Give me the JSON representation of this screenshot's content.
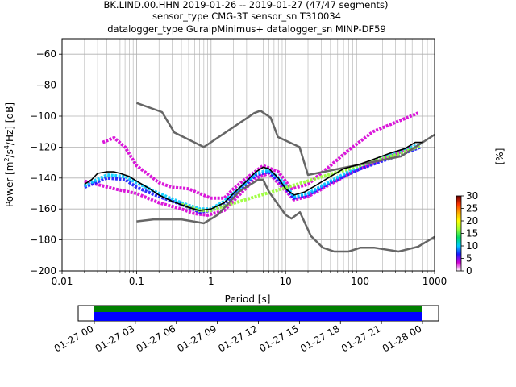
{
  "chart_data": [
    {
      "type": "heatmap",
      "title_lines": [
        "BK.LIND.00.HHN   2019-01-26 -- 2019-01-27  (47/47 segments)",
        "sensor_type CMG-3T sensor_sn T310034",
        "datalogger_type GuralpMinimus+ datalogger_sn MINP-DF59"
      ],
      "xlabel": "Period [s]",
      "ylabel_parts": [
        "Power [m",
        "2",
        "/s",
        "4",
        "/Hz] [dB]"
      ],
      "xscale": "log",
      "xlim": [
        0.01,
        1000
      ],
      "ylim": [
        -200,
        -50
      ],
      "grid": true,
      "x_ticks": [
        {
          "value": 0.01,
          "label": "0.01"
        },
        {
          "value": 0.1,
          "label": "0.1"
        },
        {
          "value": 1,
          "label": "1"
        },
        {
          "value": 10,
          "label": "10"
        },
        {
          "value": 100,
          "label": "100"
        },
        {
          "value": 1000,
          "label": "1000"
        }
      ],
      "y_ticks": [
        {
          "value": -60,
          "label": "−60"
        },
        {
          "value": -80,
          "label": "−80"
        },
        {
          "value": -100,
          "label": "−100"
        },
        {
          "value": -120,
          "label": "−120"
        },
        {
          "value": -140,
          "label": "−140"
        },
        {
          "value": -160,
          "label": "−160"
        },
        {
          "value": -180,
          "label": "−180"
        },
        {
          "value": -200,
          "label": "−200"
        }
      ],
      "colorbar": {
        "label": "[%]",
        "range": [
          0,
          30
        ],
        "ticks": [
          {
            "value": 0,
            "label": "0"
          },
          {
            "value": 5,
            "label": "5"
          },
          {
            "value": 10,
            "label": "10"
          },
          {
            "value": 15,
            "label": "15"
          },
          {
            "value": 20,
            "label": "20"
          },
          {
            "value": 25,
            "label": "25"
          },
          {
            "value": 30,
            "label": "30"
          }
        ],
        "colors": [
          "#ffffff",
          "#d600d6",
          "#1a1aff",
          "#00ccff",
          "#00dd66",
          "#99ff33",
          "#ffff00",
          "#ffaa00",
          "#ff3300",
          "#660000"
        ]
      },
      "noise_models": [
        {
          "name": "NHNM",
          "color": "#666666",
          "points": [
            [
              0.1,
              -91.5
            ],
            [
              0.22,
              -97.4
            ],
            [
              0.32,
              -110.5
            ],
            [
              0.8,
              -120
            ],
            [
              3.8,
              -98
            ],
            [
              4.6,
              -96.5
            ],
            [
              6.3,
              -101
            ],
            [
              7.9,
              -113.5
            ],
            [
              15.4,
              -120
            ],
            [
              20,
              -138
            ],
            [
              354.8,
              -126
            ],
            [
              10000,
              -80
            ]
          ]
        },
        {
          "name": "NLNM",
          "color": "#666666",
          "points": [
            [
              0.1,
              -168
            ],
            [
              0.17,
              -166.7
            ],
            [
              0.4,
              -166.7
            ],
            [
              0.8,
              -169.2
            ],
            [
              1.24,
              -163.7
            ],
            [
              2.4,
              -148.6
            ],
            [
              4.3,
              -141.1
            ],
            [
              5.0,
              -141.1
            ],
            [
              6.0,
              -149
            ],
            [
              10.0,
              -163.8
            ],
            [
              12.0,
              -166.2
            ],
            [
              15.6,
              -162.1
            ],
            [
              21.9,
              -177.5
            ],
            [
              31.6,
              -185
            ],
            [
              45,
              -187.5
            ],
            [
              70,
              -187.5
            ],
            [
              101,
              -185
            ],
            [
              154,
              -185
            ],
            [
              328,
              -187.5
            ],
            [
              600,
              -184.4
            ],
            [
              1000,
              -178
            ]
          ]
        }
      ],
      "mode_curve": {
        "name": "mode",
        "color": "#000000",
        "points": [
          [
            0.02,
            -144
          ],
          [
            0.025,
            -141
          ],
          [
            0.03,
            -137
          ],
          [
            0.04,
            -136
          ],
          [
            0.05,
            -136
          ],
          [
            0.06,
            -137
          ],
          [
            0.08,
            -139
          ],
          [
            0.1,
            -142
          ],
          [
            0.15,
            -147
          ],
          [
            0.2,
            -151
          ],
          [
            0.3,
            -155
          ],
          [
            0.5,
            -159
          ],
          [
            0.7,
            -161
          ],
          [
            1.0,
            -160
          ],
          [
            1.5,
            -156
          ],
          [
            2.0,
            -150
          ],
          [
            3.0,
            -142
          ],
          [
            4.0,
            -136
          ],
          [
            5.0,
            -133
          ],
          [
            6.0,
            -134
          ],
          [
            8.0,
            -140
          ],
          [
            10.0,
            -147
          ],
          [
            13.0,
            -151
          ],
          [
            18.0,
            -149
          ],
          [
            25.0,
            -145
          ],
          [
            40.0,
            -139
          ],
          [
            60.0,
            -134
          ],
          [
            100.0,
            -131
          ],
          [
            150.0,
            -128
          ],
          [
            250.0,
            -124
          ],
          [
            400.0,
            -121
          ],
          [
            550.0,
            -117
          ],
          [
            700.0,
            -117
          ]
        ]
      },
      "density_layers": [
        {
          "percent": 2,
          "color": "#d600d6",
          "points": [
            [
              0.035,
              -117
            ],
            [
              0.05,
              -114
            ],
            [
              0.07,
              -120
            ],
            [
              0.1,
              -132
            ],
            [
              0.2,
              -143
            ],
            [
              0.3,
              -146
            ],
            [
              0.5,
              -147
            ],
            [
              0.7,
              -150
            ],
            [
              1.0,
              -153
            ],
            [
              1.5,
              -153
            ],
            [
              2.0,
              -147
            ],
            [
              3.0,
              -140
            ],
            [
              5.0,
              -132
            ],
            [
              8.0,
              -136
            ],
            [
              12.0,
              -147
            ],
            [
              20.0,
              -144
            ],
            [
              40.0,
              -132
            ],
            [
              70.0,
              -122
            ],
            [
              150.0,
              -110
            ],
            [
              300.0,
              -104
            ],
            [
              600.0,
              -98
            ]
          ]
        },
        {
          "percent": 3,
          "color": "#d600d6",
          "points": [
            [
              0.02,
              -142
            ],
            [
              0.05,
              -147
            ],
            [
              0.1,
              -150
            ],
            [
              0.2,
              -156
            ],
            [
              0.4,
              -160
            ],
            [
              0.6,
              -163
            ],
            [
              0.9,
              -164
            ],
            [
              1.5,
              -161
            ],
            [
              2.5,
              -150
            ],
            [
              4.0,
              -140
            ],
            [
              6.0,
              -137
            ],
            [
              9.0,
              -146
            ],
            [
              13.0,
              -154
            ],
            [
              20.0,
              -152
            ],
            [
              40.0,
              -144
            ],
            [
              80.0,
              -136
            ],
            [
              200.0,
              -128
            ],
            [
              500.0,
              -120
            ]
          ]
        },
        {
          "percent": 6,
          "color": "#1a1aff",
          "points": [
            [
              0.02,
              -146
            ],
            [
              0.04,
              -140
            ],
            [
              0.07,
              -141
            ],
            [
              0.1,
              -146
            ],
            [
              0.2,
              -152
            ],
            [
              0.4,
              -157
            ],
            [
              0.7,
              -162
            ],
            [
              1.0,
              -161
            ],
            [
              1.5,
              -157
            ],
            [
              2.5,
              -147
            ],
            [
              4.0,
              -138
            ],
            [
              6.0,
              -136
            ],
            [
              9.0,
              -144
            ],
            [
              13.0,
              -153
            ],
            [
              20.0,
              -151
            ],
            [
              40.0,
              -143
            ],
            [
              100.0,
              -134
            ],
            [
              300.0,
              -126
            ],
            [
              650.0,
              -120
            ]
          ]
        },
        {
          "percent": 12,
          "color": "#00ccff",
          "points": [
            [
              0.02,
              -145
            ],
            [
              0.04,
              -138
            ],
            [
              0.07,
              -139
            ],
            [
              0.1,
              -143
            ],
            [
              0.2,
              -150
            ],
            [
              0.4,
              -156
            ],
            [
              0.7,
              -160
            ],
            [
              1.0,
              -160
            ],
            [
              1.5,
              -155
            ],
            [
              2.5,
              -146
            ],
            [
              4.0,
              -137
            ],
            [
              6.0,
              -135
            ],
            [
              9.0,
              -142
            ],
            [
              13.0,
              -152
            ],
            [
              20.0,
              -150
            ],
            [
              40.0,
              -142
            ],
            [
              100.0,
              -132
            ],
            [
              300.0,
              -124
            ],
            [
              650.0,
              -118
            ]
          ]
        },
        {
          "percent": 22,
          "color": "#99ff33",
          "points": [
            [
              0.4,
              -157
            ],
            [
              0.7,
              -161
            ],
            [
              1.0,
              -161
            ],
            [
              1.3,
              -159
            ],
            [
              300.0,
              -125
            ],
            [
              400.0,
              -123
            ],
            [
              650.0,
              -119
            ]
          ]
        }
      ]
    },
    {
      "type": "timeline",
      "xlim": [
        "01-27 00",
        "01-28 00"
      ],
      "x_ticks": [
        "01-27 00",
        "01-27 03",
        "01-27 06",
        "01-27 09",
        "01-27 12",
        "01-27 15",
        "01-27 18",
        "01-27 21",
        "01-28 00"
      ],
      "segments": [
        {
          "name": "data",
          "color": "#008000",
          "start_hour": 0,
          "end_hour": 24
        },
        {
          "name": "coverage",
          "color": "#0000ff",
          "start_hour": 0,
          "end_hour": 24
        }
      ]
    }
  ]
}
